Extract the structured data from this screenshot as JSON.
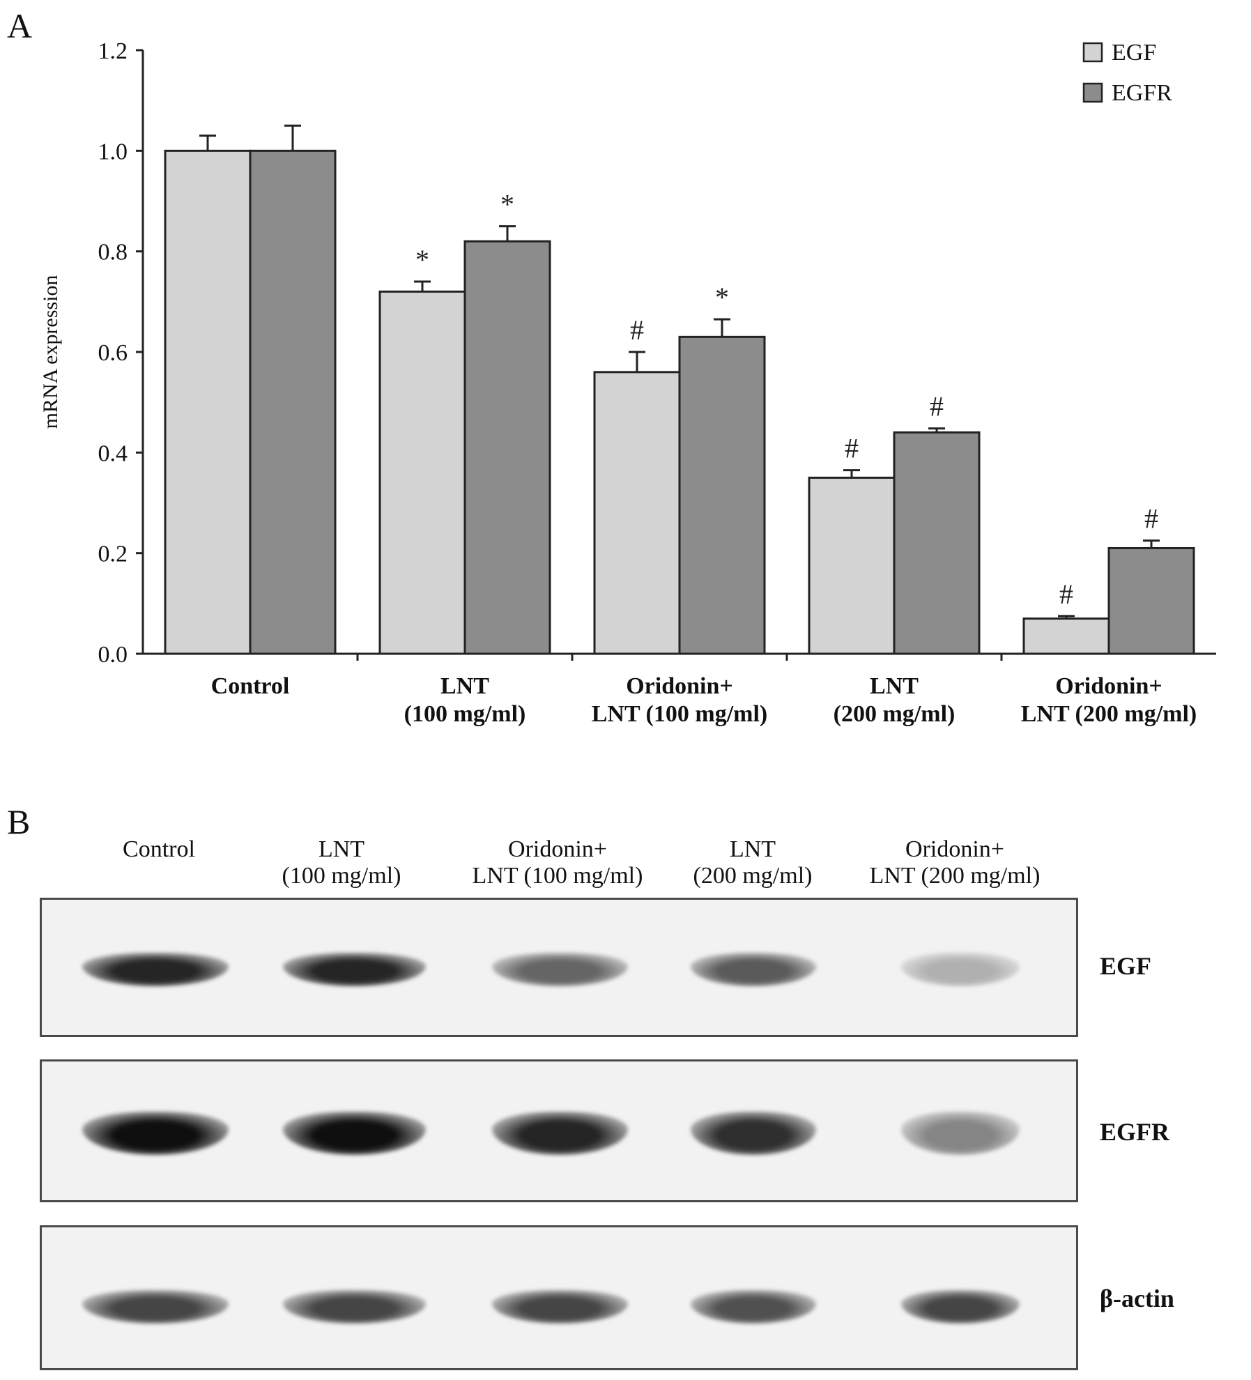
{
  "panelA": {
    "letter": "A",
    "chart_data": {
      "type": "bar",
      "ylabel": "mRNA expression",
      "ylim": [
        0,
        1.2
      ],
      "yticks": [
        "0.0",
        "0.2",
        "0.4",
        "0.6",
        "0.8",
        "1.0",
        "1.2"
      ],
      "categories": [
        "Control",
        "LNT\n(100 mg/ml)",
        "Oridonin+\nLNT (100 mg/ml)",
        "LNT\n(200 mg/ml)",
        "Oridonin+\nLNT (200 mg/ml)"
      ],
      "series": [
        {
          "name": "EGF",
          "color": "#d3d3d3",
          "values": [
            1.0,
            0.72,
            0.56,
            0.35,
            0.07
          ],
          "errors": [
            0.03,
            0.02,
            0.04,
            0.015,
            0.005
          ],
          "marks": [
            "",
            "*",
            "#",
            "#",
            "#"
          ]
        },
        {
          "name": "EGFR",
          "color": "#8c8c8c",
          "values": [
            1.0,
            0.82,
            0.63,
            0.44,
            0.21
          ],
          "errors": [
            0.05,
            0.03,
            0.035,
            0.008,
            0.015
          ],
          "marks": [
            "",
            "*",
            "*",
            "#",
            "#"
          ]
        }
      ],
      "legend": "top-right"
    }
  },
  "panelB": {
    "letter": "B",
    "lanes": [
      {
        "line1": "Control",
        "line2": ""
      },
      {
        "line1": "LNT",
        "line2": "(100 mg/ml)"
      },
      {
        "line1": "Oridonin+",
        "line2": "LNT (100 mg/ml)"
      },
      {
        "line1": "LNT",
        "line2": "(200 mg/ml)"
      },
      {
        "line1": "Oridonin+",
        "line2": "LNT (200 mg/ml)"
      }
    ],
    "blots": [
      {
        "label": "EGF",
        "intensity": [
          0.9,
          0.9,
          0.6,
          0.65,
          0.25
        ]
      },
      {
        "label": "EGFR",
        "intensity": [
          1.0,
          1.0,
          0.9,
          0.85,
          0.45
        ]
      },
      {
        "label": "β-actin",
        "intensity": [
          0.75,
          0.75,
          0.75,
          0.7,
          0.75
        ]
      }
    ]
  }
}
